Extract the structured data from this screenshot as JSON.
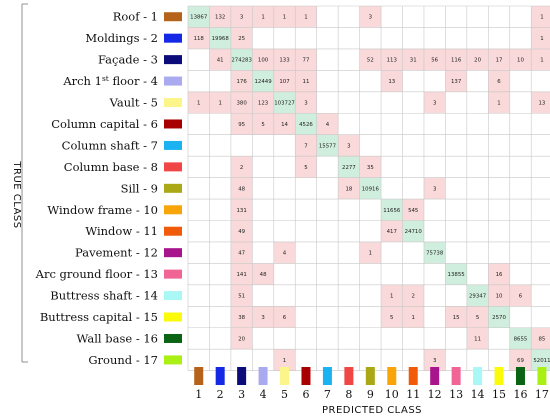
{
  "chart_data": {
    "type": "heatmap",
    "title": "",
    "ylabel": "TRUE CLASS",
    "xlabel": "PREDICTED CLASS",
    "row_labels": [
      "Roof - 1",
      "Moldings - 2",
      "Façade - 3",
      "Arch  1st floor - 4",
      "Vault - 5",
      "Column capital - 6",
      "Column shaft - 7",
      "Column base - 8",
      "Sill - 9",
      "Window frame - 10",
      "Window - 11",
      "Pavement - 12",
      "Arc ground floor - 13",
      "Buttress shaft - 14",
      "Buttress capital - 15",
      "Wall base - 16",
      "Ground - 17"
    ],
    "col_labels": [
      "1",
      "2",
      "3",
      "4",
      "5",
      "6",
      "7",
      "8",
      "9",
      "10",
      "11",
      "12",
      "13",
      "14",
      "15",
      "16",
      "17"
    ],
    "class_colors": [
      "#b5621a",
      "#1428e6",
      "#0b0b7a",
      "#aaaaf0",
      "#fbf58a",
      "#a80000",
      "#1ab2f0",
      "#f04646",
      "#aaa814",
      "#f8a50a",
      "#f05a08",
      "#a8148c",
      "#f06496",
      "#aaf8f6",
      "#fafa0a",
      "#0a6414",
      "#aaf014"
    ],
    "matrix": [
      [
        13867,
        132,
        3,
        1,
        1,
        1,
        null,
        null,
        3,
        null,
        null,
        null,
        null,
        null,
        null,
        null,
        1
      ],
      [
        118,
        19968,
        25,
        null,
        null,
        null,
        null,
        null,
        null,
        null,
        null,
        null,
        null,
        null,
        null,
        null,
        1
      ],
      [
        null,
        41,
        274283,
        100,
        133,
        77,
        null,
        null,
        52,
        113,
        31,
        56,
        116,
        20,
        17,
        10,
        1
      ],
      [
        null,
        null,
        176,
        12449,
        107,
        11,
        null,
        null,
        null,
        13,
        null,
        null,
        137,
        null,
        6,
        null,
        null
      ],
      [
        1,
        1,
        380,
        123,
        103727,
        3,
        null,
        null,
        null,
        null,
        null,
        3,
        null,
        null,
        1,
        null,
        13
      ],
      [
        null,
        null,
        95,
        5,
        14,
        4526,
        4,
        null,
        null,
        null,
        null,
        null,
        null,
        null,
        null,
        null,
        null
      ],
      [
        null,
        null,
        null,
        null,
        null,
        7,
        15577,
        3,
        null,
        null,
        null,
        null,
        null,
        null,
        null,
        null,
        null
      ],
      [
        null,
        null,
        2,
        null,
        null,
        5,
        null,
        2277,
        35,
        null,
        null,
        null,
        null,
        null,
        null,
        null,
        null
      ],
      [
        null,
        null,
        48,
        null,
        null,
        null,
        null,
        18,
        10916,
        null,
        null,
        3,
        null,
        null,
        null,
        null,
        null
      ],
      [
        null,
        null,
        131,
        null,
        null,
        null,
        null,
        null,
        null,
        11656,
        545,
        null,
        null,
        null,
        null,
        null,
        null
      ],
      [
        null,
        null,
        49,
        null,
        null,
        null,
        null,
        null,
        null,
        417,
        24710,
        null,
        null,
        null,
        null,
        null,
        null
      ],
      [
        null,
        null,
        47,
        null,
        4,
        null,
        null,
        null,
        1,
        null,
        null,
        75738,
        null,
        null,
        null,
        null,
        null
      ],
      [
        null,
        null,
        141,
        48,
        null,
        null,
        null,
        null,
        null,
        null,
        null,
        null,
        13855,
        null,
        16,
        null,
        null
      ],
      [
        null,
        null,
        51,
        null,
        null,
        null,
        null,
        null,
        null,
        1,
        2,
        null,
        null,
        29347,
        10,
        6,
        null
      ],
      [
        null,
        null,
        38,
        3,
        6,
        null,
        null,
        null,
        null,
        5,
        1,
        null,
        15,
        5,
        2570,
        null,
        null
      ],
      [
        null,
        null,
        20,
        null,
        null,
        null,
        null,
        null,
        null,
        null,
        null,
        null,
        null,
        11,
        null,
        8655,
        85
      ],
      [
        null,
        null,
        null,
        null,
        1,
        null,
        null,
        null,
        null,
        null,
        null,
        3,
        null,
        null,
        null,
        69,
        52011
      ]
    ],
    "diagonal_color": "#cfeedd",
    "offdiag_color": "#f9d9d9"
  }
}
